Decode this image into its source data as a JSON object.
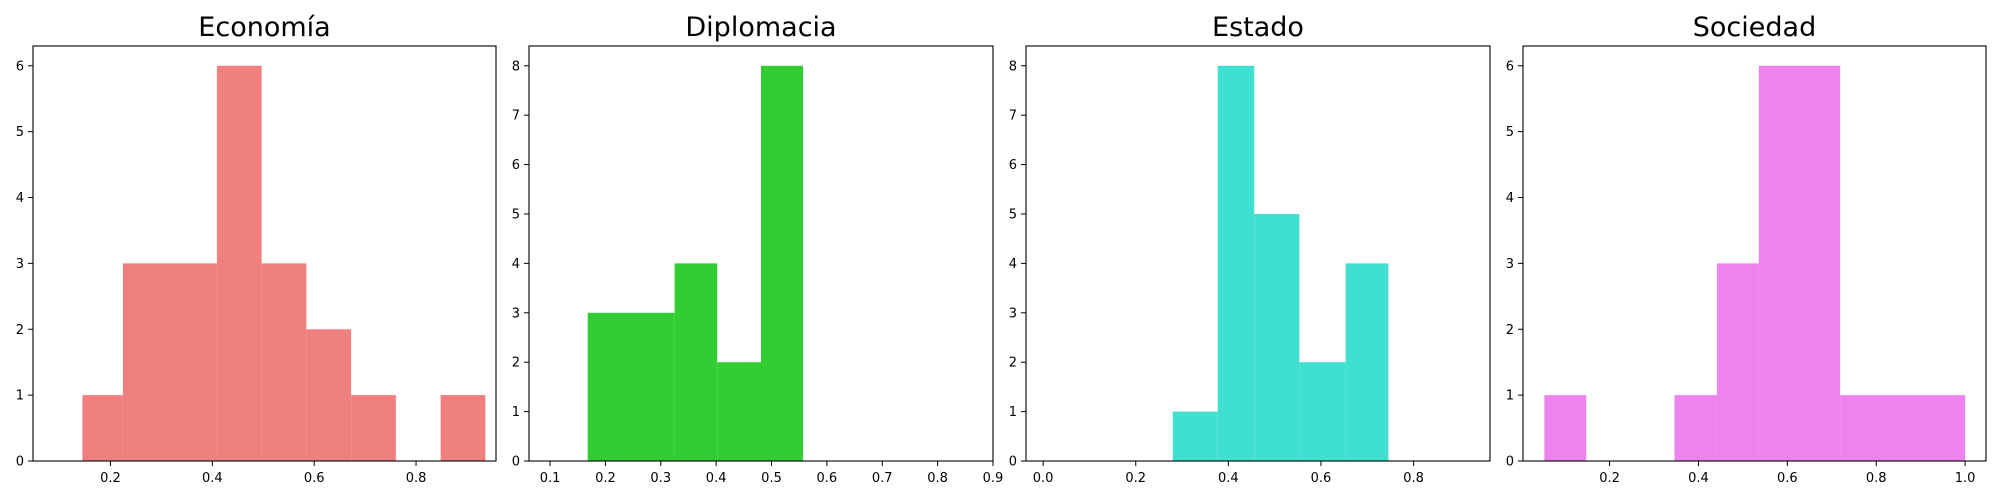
{
  "chart_data": [
    {
      "type": "bar",
      "title": "Economía",
      "color": "#f08080",
      "xlim": [
        0.048,
        0.957
      ],
      "ylim": [
        0,
        6.3
      ],
      "xticks": [
        0.2,
        0.4,
        0.6,
        0.8
      ],
      "xtick_labels": [
        "0.2",
        "0.4",
        "0.6",
        "0.8"
      ],
      "yticks": [
        0,
        1,
        2,
        3,
        4,
        5,
        6
      ],
      "ytick_labels": [
        "0",
        "1",
        "2",
        "3",
        "4",
        "5",
        "6"
      ],
      "bins": [
        {
          "x0": 0.145,
          "x1": 0.2245,
          "count": 1
        },
        {
          "x0": 0.2245,
          "x1": 0.4091,
          "count": 3
        },
        {
          "x0": 0.4091,
          "x1": 0.4969,
          "count": 6
        },
        {
          "x0": 0.4969,
          "x1": 0.5847,
          "count": 3
        },
        {
          "x0": 0.5847,
          "x1": 0.6726,
          "count": 2
        },
        {
          "x0": 0.6726,
          "x1": 0.7604,
          "count": 1
        },
        {
          "x0": 0.7604,
          "x1": 0.8483,
          "count": 0
        },
        {
          "x0": 0.8483,
          "x1": 0.9361,
          "count": 1
        }
      ]
    },
    {
      "type": "bar",
      "title": "Diplomacia",
      "color": "#32cd32",
      "xlim": [
        0.062,
        0.9
      ],
      "ylim": [
        0,
        8.4
      ],
      "xticks": [
        0.1,
        0.2,
        0.3,
        0.4,
        0.5,
        0.6,
        0.7,
        0.8,
        0.9
      ],
      "xtick_labels": [
        "0.1",
        "0.2",
        "0.3",
        "0.4",
        "0.5",
        "0.6",
        "0.7",
        "0.8",
        "0.9"
      ],
      "yticks": [
        0,
        1,
        2,
        3,
        4,
        5,
        6,
        7,
        8
      ],
      "ytick_labels": [
        "0",
        "1",
        "2",
        "3",
        "4",
        "5",
        "6",
        "7",
        "8"
      ],
      "bins": [
        {
          "x0": 0.168,
          "x1": 0.325,
          "count": 3
        },
        {
          "x0": 0.325,
          "x1": 0.402,
          "count": 4
        },
        {
          "x0": 0.402,
          "x1": 0.481,
          "count": 2
        },
        {
          "x0": 0.481,
          "x1": 0.557,
          "count": 8
        }
      ]
    },
    {
      "type": "bar",
      "title": "Estado",
      "color": "#40e0d0",
      "xlim": [
        -0.037,
        0.965
      ],
      "ylim": [
        0,
        8.4
      ],
      "xticks": [
        0.0,
        0.2,
        0.4,
        0.6,
        0.8
      ],
      "xtick_labels": [
        "0.0",
        "0.2",
        "0.4",
        "0.6",
        "0.8"
      ],
      "yticks": [
        0,
        1,
        2,
        3,
        4,
        5,
        6,
        7,
        8
      ],
      "ytick_labels": [
        "0",
        "1",
        "2",
        "3",
        "4",
        "5",
        "6",
        "7",
        "8"
      ],
      "bins": [
        {
          "x0": 0.28,
          "x1": 0.3771,
          "count": 1
        },
        {
          "x0": 0.3771,
          "x1": 0.4559,
          "count": 8
        },
        {
          "x0": 0.4559,
          "x1": 0.5534,
          "count": 5
        },
        {
          "x0": 0.5534,
          "x1": 0.6532,
          "count": 2
        },
        {
          "x0": 0.6532,
          "x1": 0.7456,
          "count": 4
        }
      ]
    },
    {
      "type": "bar",
      "title": "Sociedad",
      "color": "#ee82ee",
      "xlim": [
        0.0052,
        1.047
      ],
      "ylim": [
        0,
        6.3
      ],
      "xticks": [
        0.2,
        0.4,
        0.6,
        0.8,
        1.0
      ],
      "xtick_labels": [
        "0.2",
        "0.4",
        "0.6",
        "0.8",
        "1.0"
      ],
      "yticks": [
        0,
        1,
        2,
        3,
        4,
        5,
        6
      ],
      "ytick_labels": [
        "0",
        "1",
        "2",
        "3",
        "4",
        "5",
        "6"
      ],
      "bins": [
        {
          "x0": 0.0532,
          "x1": 0.1475,
          "count": 1
        },
        {
          "x0": 0.1475,
          "x1": 0.3461,
          "count": 0
        },
        {
          "x0": 0.3461,
          "x1": 0.4415,
          "count": 1
        },
        {
          "x0": 0.4415,
          "x1": 0.5358,
          "count": 3
        },
        {
          "x0": 0.5358,
          "x1": 0.7188,
          "count": 6
        },
        {
          "x0": 0.7188,
          "x1": 1.0,
          "count": 1
        }
      ]
    }
  ]
}
